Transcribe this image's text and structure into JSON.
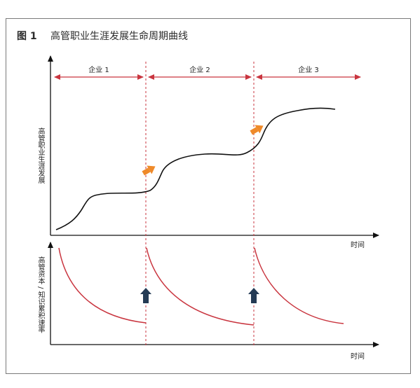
{
  "figure": {
    "label": "图 1",
    "title": "高管职业生涯发展生命周期曲线"
  },
  "top_chart": {
    "ylabel": "高管职业生涯发展",
    "xlabel": "时间",
    "companies": [
      "企业 1",
      "企业 2",
      "企业 3"
    ]
  },
  "bottom_chart": {
    "ylabel": "高管资本 / 知识累积速率",
    "xlabel": "时间"
  },
  "colors": {
    "curve": "#111111",
    "accent_red": "#c9353f",
    "arrow_orange": "#ef8a2a",
    "arrow_navy": "#243b55"
  }
}
